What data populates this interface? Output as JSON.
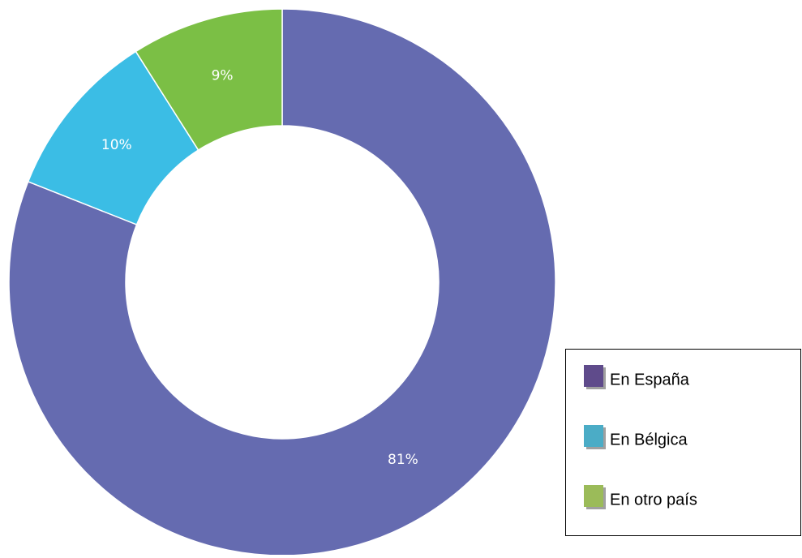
{
  "chart_data": {
    "type": "donut",
    "categories": [
      "En España",
      "En Bélgica",
      "En otro país"
    ],
    "values": [
      81,
      10,
      9
    ],
    "value_labels": [
      "81%",
      "10%",
      "9%"
    ],
    "colors": [
      "#656bb0",
      "#3bbde5",
      "#7bbf45"
    ],
    "legend_colors": [
      "#5f4b8b",
      "#4bacc6",
      "#9bbb59"
    ],
    "legend": "lower right"
  }
}
